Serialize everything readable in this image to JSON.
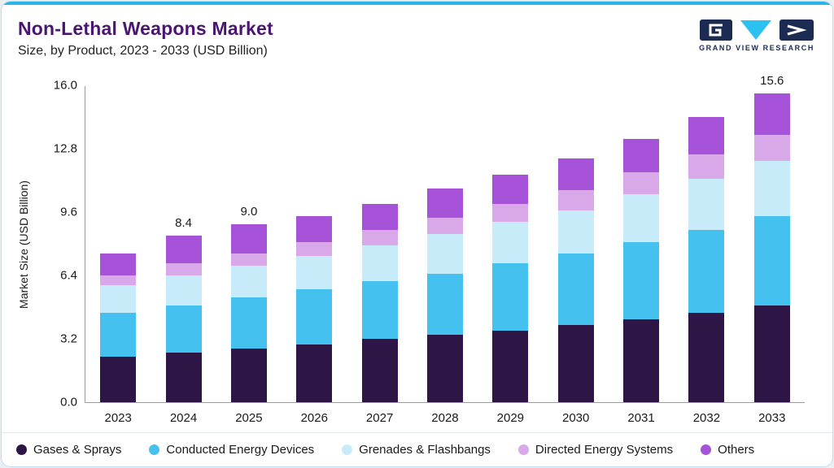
{
  "header": {
    "title": "Non-Lethal Weapons Market",
    "subtitle": "Size, by Product, 2023 - 2033 (USD Billion)",
    "brand": "GRAND VIEW RESEARCH"
  },
  "colors": {
    "accent_top": "#29b4e8",
    "title": "#4a1670",
    "logo_navy": "#1c2b52",
    "logo_cyan": "#2bc1f1",
    "axis_line": "#9b9b9b"
  },
  "chart_data": {
    "type": "bar",
    "stacked": true,
    "title": "Non-Lethal Weapons Market Size, by Product, 2023 - 2033 (USD Billion)",
    "xlabel": "",
    "ylabel": "Market Size (USD Billion)",
    "ylim": [
      0,
      16.0
    ],
    "yticks": [
      0.0,
      3.2,
      6.4,
      9.6,
      12.8,
      16.0
    ],
    "grid": false,
    "legend_position": "bottom",
    "categories": [
      "2023",
      "2024",
      "2025",
      "2026",
      "2027",
      "2028",
      "2029",
      "2030",
      "2031",
      "2032",
      "2033"
    ],
    "series": [
      {
        "name": "Gases & Sprays",
        "color": "#2d1646",
        "values": [
          2.3,
          2.5,
          2.7,
          2.9,
          3.2,
          3.4,
          3.6,
          3.9,
          4.2,
          4.5,
          4.9
        ]
      },
      {
        "name": "Conducted Energy Devices",
        "color": "#45c1f0",
        "values": [
          2.2,
          2.4,
          2.6,
          2.8,
          2.9,
          3.1,
          3.4,
          3.6,
          3.9,
          4.2,
          4.5
        ]
      },
      {
        "name": "Grenades & Flashbangs",
        "color": "#c8ebfa",
        "values": [
          1.4,
          1.5,
          1.6,
          1.7,
          1.8,
          2.0,
          2.1,
          2.2,
          2.4,
          2.6,
          2.8
        ]
      },
      {
        "name": "Directed Energy Systems",
        "color": "#d8a8e9",
        "values": [
          0.5,
          0.6,
          0.6,
          0.7,
          0.8,
          0.8,
          0.9,
          1.0,
          1.1,
          1.2,
          1.3
        ]
      },
      {
        "name": "Others",
        "color": "#a653da",
        "values": [
          1.1,
          1.4,
          1.5,
          1.3,
          1.3,
          1.5,
          1.5,
          1.6,
          1.7,
          1.9,
          2.1
        ]
      }
    ],
    "totals": [
      7.5,
      8.4,
      9.0,
      9.4,
      10.0,
      10.8,
      11.5,
      12.3,
      13.3,
      14.4,
      15.6
    ],
    "total_labels": [
      "",
      "8.4",
      "9.0",
      "",
      "",
      "",
      "",
      "",
      "",
      "",
      "15.6"
    ]
  }
}
